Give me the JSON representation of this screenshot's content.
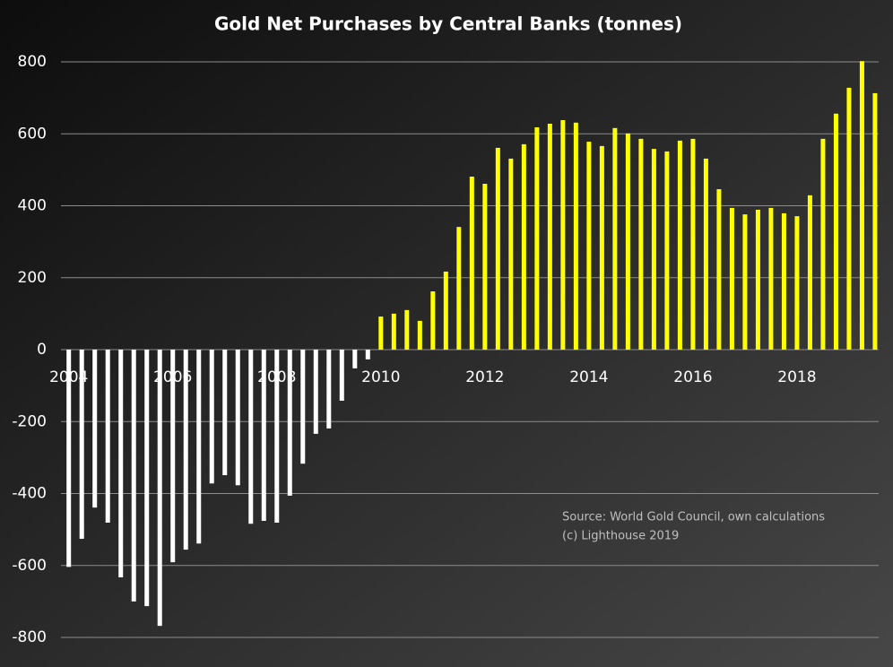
{
  "chart_data": {
    "type": "bar",
    "title": "Gold Net Purchases by Central Banks (tonnes)",
    "x": [
      2004,
      2004.25,
      2004.5,
      2004.75,
      2005,
      2005.25,
      2005.5,
      2005.75,
      2006,
      2006.25,
      2006.5,
      2006.75,
      2007,
      2007.25,
      2007.5,
      2007.75,
      2008,
      2008.25,
      2008.5,
      2008.75,
      2009,
      2009.25,
      2009.5,
      2009.75,
      2010,
      2010.25,
      2010.5,
      2010.75,
      2011,
      2011.25,
      2011.5,
      2011.75,
      2012,
      2012.25,
      2012.5,
      2012.75,
      2013,
      2013.25,
      2013.5,
      2013.75,
      2014,
      2014.25,
      2014.5,
      2014.75,
      2015,
      2015.25,
      2015.5,
      2015.75,
      2016,
      2016.25,
      2016.5,
      2016.75,
      2017,
      2017.25,
      2017.5,
      2017.75,
      2018,
      2018.25,
      2018.5,
      2018.75,
      2019,
      2019.25,
      2019.5
    ],
    "values": [
      -604,
      -526,
      -439,
      -481,
      -633,
      -700,
      -713,
      -768,
      -591,
      -556,
      -539,
      -372,
      -349,
      -377,
      -484,
      -476,
      -481,
      -406,
      -317,
      -234,
      -219,
      -142,
      -52,
      -27,
      92,
      100,
      110,
      80,
      162,
      217,
      341,
      481,
      461,
      561,
      531,
      571,
      618,
      628,
      638,
      631,
      578,
      566,
      616,
      601,
      586,
      558,
      551,
      581,
      586,
      531,
      446,
      394,
      376,
      389,
      394,
      379,
      371,
      429,
      586,
      656,
      728,
      802,
      713
    ],
    "color": "#ffff00",
    "negative_color": "#ffffff",
    "xlim": [
      2003.85,
      2019.57
    ],
    "xticks": [
      2004,
      2006,
      2008,
      2010,
      2012,
      2014,
      2016,
      2018
    ],
    "ylim": [
      -800,
      800
    ],
    "yticks": [
      -800,
      -600,
      -400,
      -200,
      0,
      200,
      400,
      600,
      800
    ],
    "grid": true,
    "annotations": [
      "Source: World Gold Council, own calculations",
      "(c) Lighthouse 2019"
    ]
  }
}
